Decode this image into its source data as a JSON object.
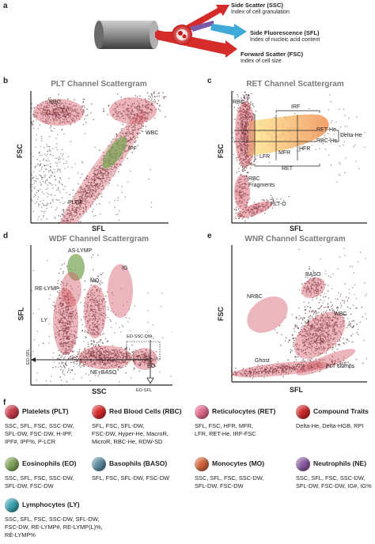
{
  "panel_a": {
    "letter": "a",
    "ssc_title": "Side Scatter (SSC)",
    "ssc_desc": "Index of cell granulation",
    "sfl_title": "Side Fluorescence (SFL)",
    "sfl_desc": "Index of nucleic acid content",
    "fsc_title": "Forward Scatter (FSC)",
    "fsc_desc": "Index of cell size",
    "colors": {
      "ssc": "#d62b2b",
      "sfl": "#3fa9d8",
      "fsc": "#d62b2b",
      "laser": "#7a5aa8"
    }
  },
  "panel_b": {
    "letter": "b",
    "title": "PLT Channel Scattergram",
    "xlabel": "SFL",
    "ylabel": "FSC",
    "labels": {
      "rbc": "RBC",
      "wbc": "WBC",
      "ipf": "IPF",
      "pltf": "PLT-F"
    }
  },
  "panel_c": {
    "letter": "c",
    "title": "RET Channel Scattergram",
    "xlabel": "SFL",
    "ylabel": "FSC",
    "labels": {
      "rbc": "RBC",
      "irf": "IRF",
      "rethe": "RET-He",
      "rbche": "RBC-He",
      "deltahe": "Delta-He",
      "lfr": "LFR",
      "mfr": "MFR",
      "hfr": "HFR",
      "ret": "RET",
      "rbcfrag1": "RBC",
      "rbcfrag2": "Fragments",
      "plto": "PLT-O"
    }
  },
  "panel_d": {
    "letter": "d",
    "title": "WDF Channel Scattergram",
    "xlabel": "SSC",
    "ylabel": "SFL",
    "labels": {
      "aslymp": "AS-LYMP",
      "relymp": "RE-LYMP",
      "mo": "MO",
      "ig": "IG",
      "ly": "LY",
      "neb": "NE+BASO",
      "eo": "EO",
      "eosscdw": "EO-SSC-DW",
      "eosfl": "EO-SFL",
      "eosfl2": "EO-SFL"
    }
  },
  "panel_e": {
    "letter": "e",
    "title": "WNR Channel Scattergram",
    "xlabel": "SFL",
    "ylabel": "FSC",
    "labels": {
      "nrbc": "NRBC",
      "baso": "BASO",
      "wbc": "WBC",
      "ghost": "Ghost",
      "pltclumps": "PLT clumps"
    }
  },
  "panel_f": {
    "letter": "f",
    "cells": [
      {
        "key": "plt",
        "name": "Platelets (PLT)",
        "params": [
          "SSC, SFL, FSC, SSC-DW,",
          "SFL-DW, FSC-DW, H-IPF,",
          "IPF#, IPF%, P-LCR"
        ],
        "icon_color": "#c63b4a"
      },
      {
        "key": "rbc",
        "name": "Red Blood Cells (RBC)",
        "params": [
          "SFL, FSC, SFL-DW,",
          "FSC-DW, Hyper-He, MacroR,",
          "MicroR, RBC-He, RDW-SD"
        ],
        "icon_color": "#d52a2a"
      },
      {
        "key": "ret",
        "name": "Reticulocytes (RET)",
        "params": [
          "SFL, FSC, HFR, MFR,",
          "LFR, RET-He, IRF-FSC"
        ],
        "icon_color": "#e06a8a"
      },
      {
        "key": "ct",
        "name": "Compound Traits",
        "params": [
          "Delta-He, Delta-HGB, RPI"
        ],
        "icon_color": "#cc2a2a"
      },
      {
        "key": "eo",
        "name": "Eosinophils (EO)",
        "params": [
          "SSC, SFL, FSC, SSC-DW,",
          "SFL-DW, FSC-DW"
        ],
        "icon_color": "#7fa35a"
      },
      {
        "key": "baso",
        "name": "Basophils (BASO)",
        "params": [
          "SFL, FSC, SFL-DW, FSC-DW"
        ],
        "icon_color": "#5a8aa0"
      },
      {
        "key": "mo",
        "name": "Monocytes (MO)",
        "params": [
          "SSC, SFL, FSC, SSC-DW,",
          "SFL-DW, FSC-DW"
        ],
        "icon_color": "#d0643a"
      },
      {
        "key": "ne",
        "name": "Neutrophils (NE)",
        "params": [
          "SSC, SFL, FSC, SSC-DW,",
          "SFL-DW, FSC-DW, IG#, IG%"
        ],
        "icon_color": "#8a5aa0"
      },
      {
        "key": "ly",
        "name": "Lymphocytes (LY)",
        "params": [
          "SSC, SFL, FSC, SSC-DW, SFL-DW,",
          "FSC-DW, RE-LYMP#, RE-LYMP(L)%,",
          "RE-LYMP%"
        ],
        "icon_color": "#3aa0b0"
      }
    ]
  }
}
